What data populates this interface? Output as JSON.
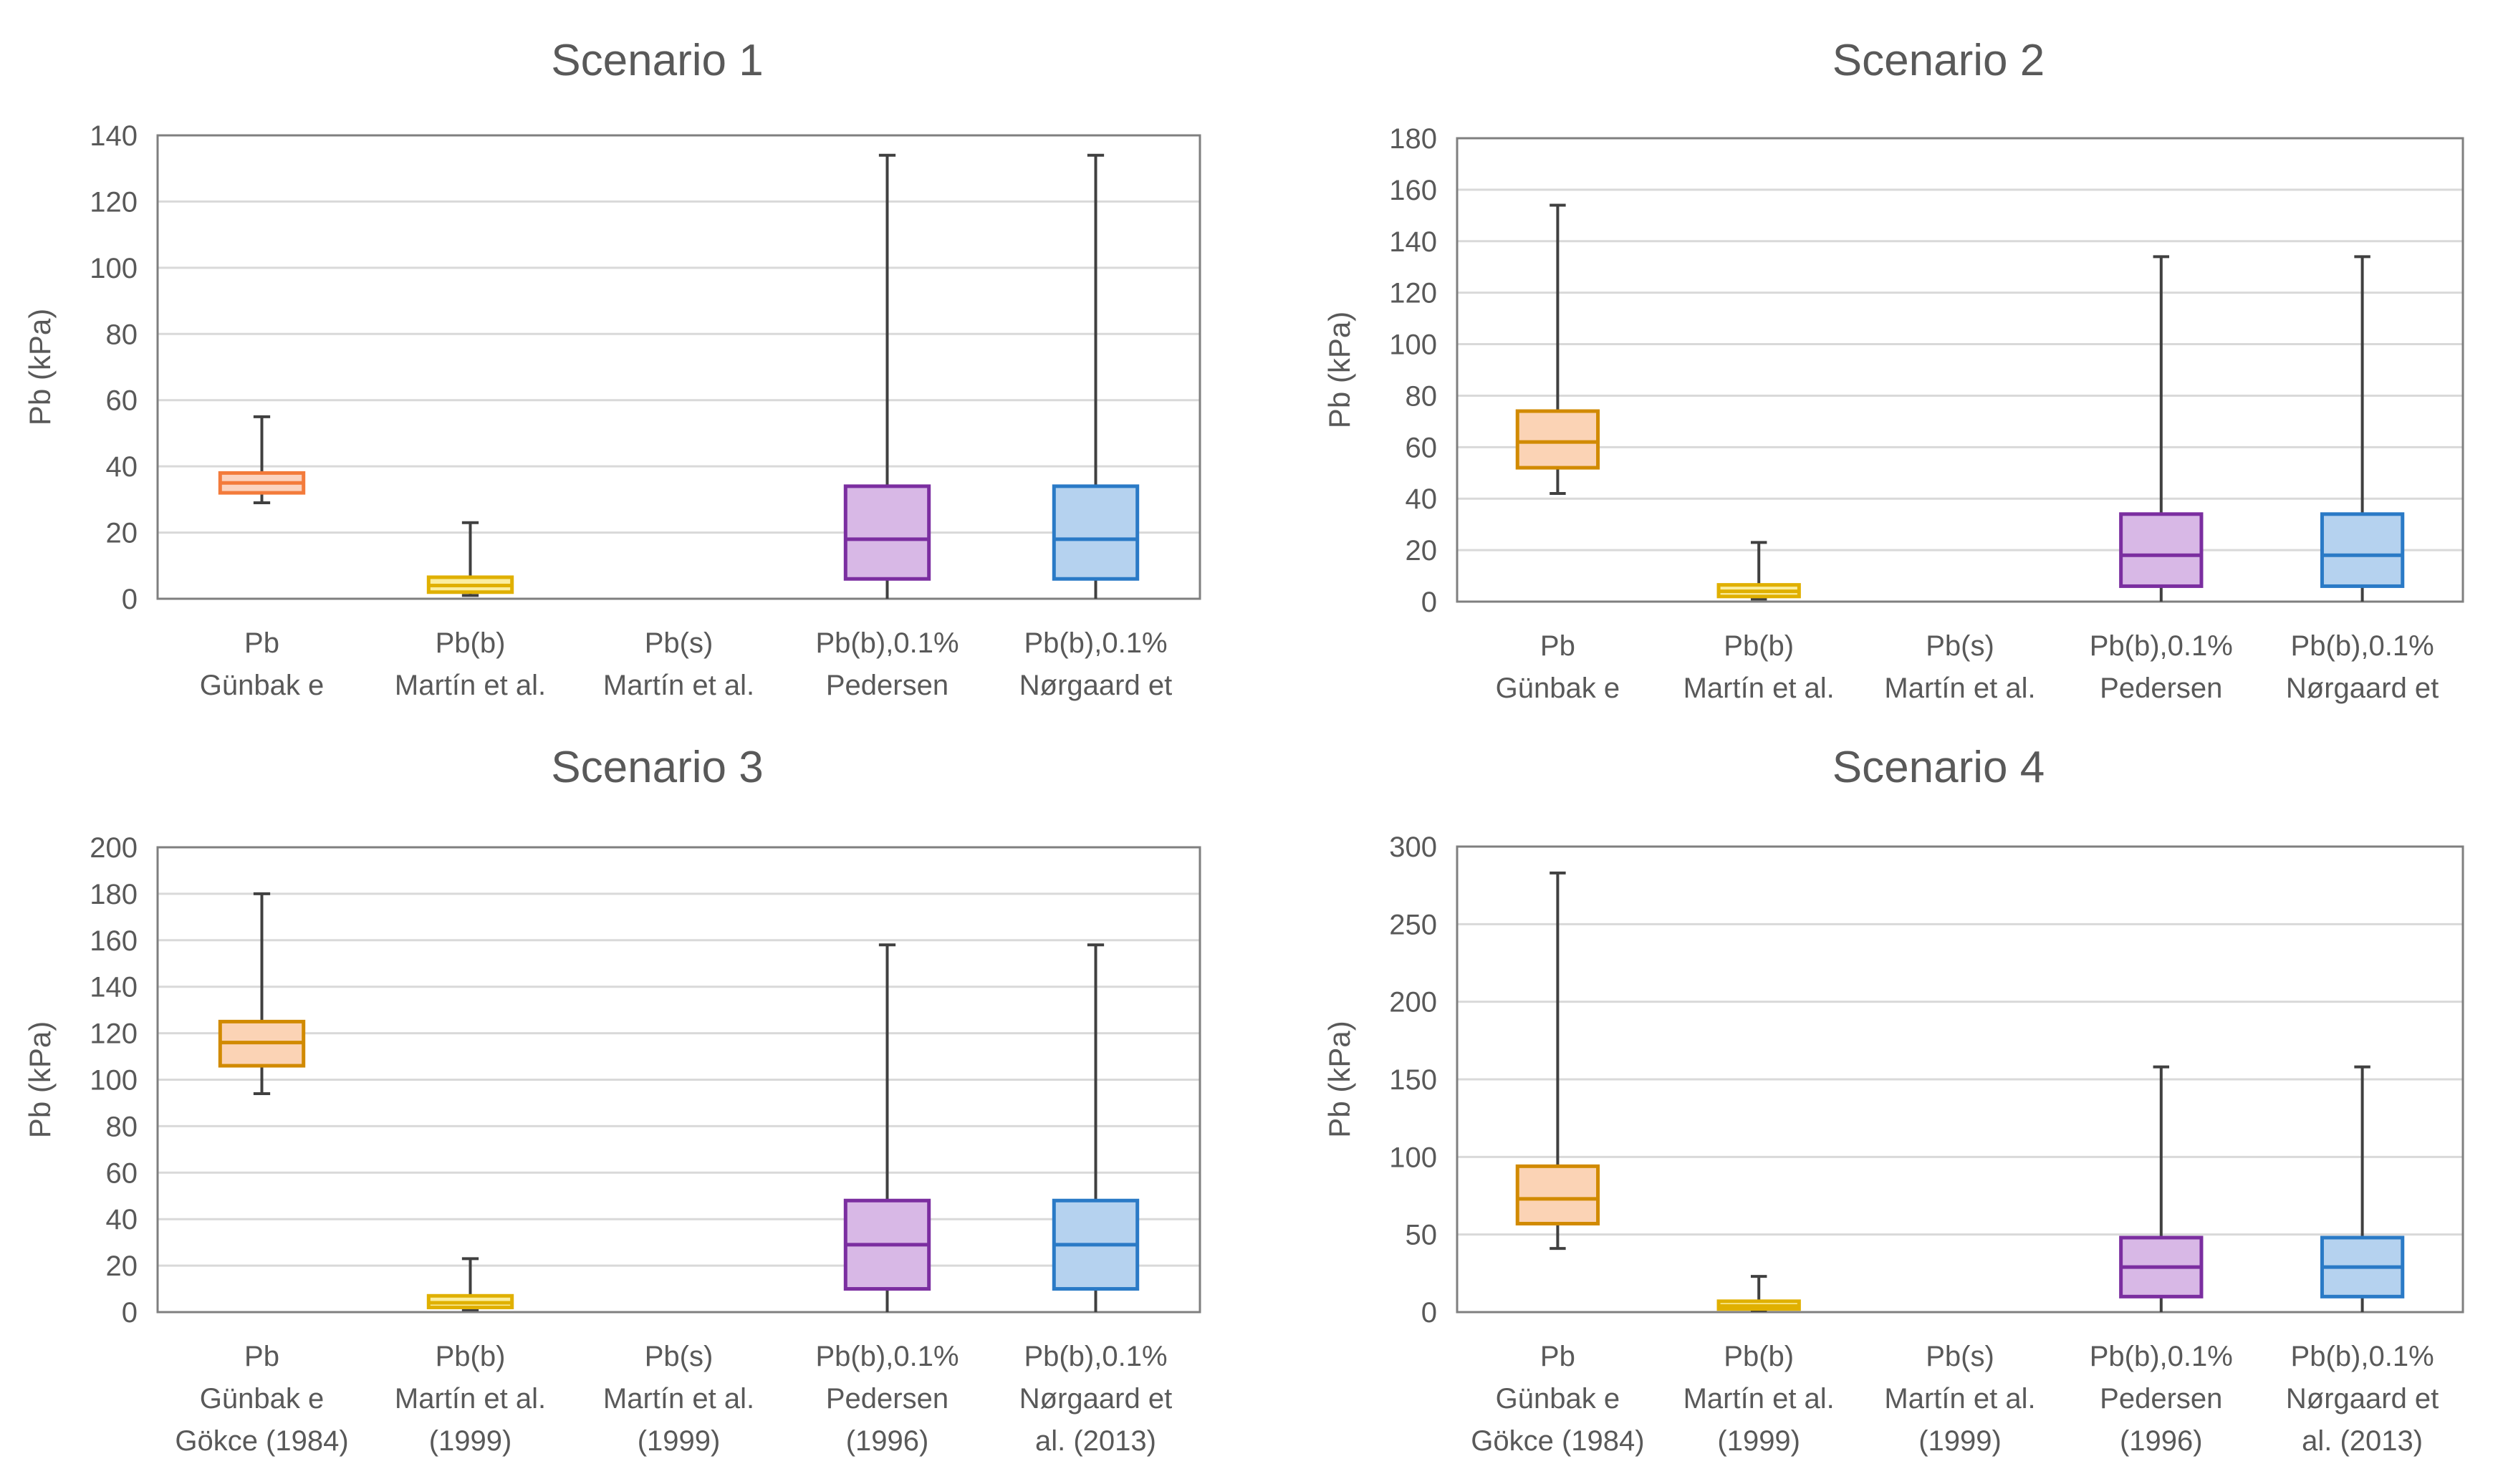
{
  "style": {
    "grid_color": "#d9d9d9",
    "frame_color": "#7f7f7f",
    "whisker_color": "#404040",
    "text_color": "#595959"
  },
  "chart_data": [
    {
      "type": "boxplot",
      "title": "Scenario 1",
      "ylabel": "Pb (kPa)",
      "ylim": [
        0,
        140
      ],
      "yticks": [
        0,
        20,
        40,
        60,
        80,
        100,
        120,
        140
      ],
      "categories": [
        [
          "Pb",
          "Günbak e"
        ],
        [
          "Pb(b)",
          "Martín et al."
        ],
        [
          "Pb(s)",
          "Martín et al."
        ],
        [
          "Pb(b),0.1%",
          "Pedersen"
        ],
        [
          "Pb(b),0.1%",
          "Nørgaard et"
        ]
      ],
      "boxes": [
        {
          "min": 29,
          "q1": 32,
          "median": 35,
          "q3": 38,
          "max": 55,
          "stroke": "#f37b3b",
          "fill": "#fbd3bf"
        },
        {
          "min": 1,
          "q1": 2,
          "median": 4,
          "q3": 6.5,
          "max": 23,
          "stroke": "#e0b000",
          "fill": "#fbeea0"
        },
        null,
        {
          "min": 0,
          "q1": 6,
          "median": 18,
          "q3": 34,
          "max": 134,
          "stroke": "#7b2ea0",
          "fill": "#d8b8e6"
        },
        {
          "min": 0,
          "q1": 6,
          "median": 18,
          "q3": 34,
          "max": 134,
          "stroke": "#2a7ac6",
          "fill": "#b5d2ef"
        }
      ]
    },
    {
      "type": "boxplot",
      "title": "Scenario 2",
      "ylabel": "Pb (kPa)",
      "ylim": [
        0,
        180
      ],
      "yticks": [
        0,
        20,
        40,
        60,
        80,
        100,
        120,
        140,
        160,
        180
      ],
      "categories": [
        [
          "Pb",
          "Günbak e"
        ],
        [
          "Pb(b)",
          "Martín et al."
        ],
        [
          "Pb(s)",
          "Martín et al."
        ],
        [
          "Pb(b),0.1%",
          "Pedersen"
        ],
        [
          "Pb(b),0.1%",
          "Nørgaard et"
        ]
      ],
      "boxes": [
        {
          "min": 42,
          "q1": 52,
          "median": 62,
          "q3": 74,
          "max": 154,
          "stroke": "#d18a00",
          "fill": "#fbd3b5"
        },
        {
          "min": 1,
          "q1": 2,
          "median": 4,
          "q3": 6.5,
          "max": 23,
          "stroke": "#e0b000",
          "fill": "#fbeea0"
        },
        null,
        {
          "min": 0,
          "q1": 6,
          "median": 18,
          "q3": 34,
          "max": 134,
          "stroke": "#7b2ea0",
          "fill": "#d8b8e6"
        },
        {
          "min": 0,
          "q1": 6,
          "median": 18,
          "q3": 34,
          "max": 134,
          "stroke": "#2a7ac6",
          "fill": "#b5d2ef"
        }
      ]
    },
    {
      "type": "boxplot",
      "title": "Scenario 3",
      "ylabel": "Pb (kPa)",
      "ylim": [
        0,
        200
      ],
      "yticks": [
        0,
        20,
        40,
        60,
        80,
        100,
        120,
        140,
        160,
        180,
        200
      ],
      "categories": [
        [
          "Pb",
          "Günbak e",
          "Gökce (1984)"
        ],
        [
          "Pb(b)",
          "Martín et al.",
          "(1999)"
        ],
        [
          "Pb(s)",
          "Martín et al.",
          "(1999)"
        ],
        [
          "Pb(b),0.1%",
          "Pedersen",
          "(1996)"
        ],
        [
          "Pb(b),0.1%",
          "Nørgaard et",
          "al. (2013)"
        ]
      ],
      "boxes": [
        {
          "min": 94,
          "q1": 106,
          "median": 116,
          "q3": 125,
          "max": 180,
          "stroke": "#d18a00",
          "fill": "#fbd3b5"
        },
        {
          "min": 1,
          "q1": 2,
          "median": 4,
          "q3": 7,
          "max": 23,
          "stroke": "#e0b000",
          "fill": "#fbeea0"
        },
        null,
        {
          "min": 0,
          "q1": 10,
          "median": 29,
          "q3": 48,
          "max": 158,
          "stroke": "#7b2ea0",
          "fill": "#d8b8e6"
        },
        {
          "min": 0,
          "q1": 10,
          "median": 29,
          "q3": 48,
          "max": 158,
          "stroke": "#2a7ac6",
          "fill": "#b5d2ef"
        }
      ]
    },
    {
      "type": "boxplot",
      "title": "Scenario 4",
      "ylabel": "Pb (kPa)",
      "ylim": [
        0,
        300
      ],
      "yticks": [
        0,
        50,
        100,
        150,
        200,
        250,
        300
      ],
      "categories": [
        [
          "Pb",
          "Günbak e",
          "Gökce (1984)"
        ],
        [
          "Pb(b)",
          "Martín et al.",
          "(1999)"
        ],
        [
          "Pb(s)",
          "Martín et al.",
          "(1999)"
        ],
        [
          "Pb(b),0.1%",
          "Pedersen",
          "(1996)"
        ],
        [
          "Pb(b),0.1%",
          "Nørgaard et",
          "al. (2013)"
        ]
      ],
      "boxes": [
        {
          "min": 41,
          "q1": 57,
          "median": 73,
          "q3": 94,
          "max": 283,
          "stroke": "#d18a00",
          "fill": "#fbd3b5"
        },
        {
          "min": 1,
          "q1": 2,
          "median": 4,
          "q3": 7,
          "max": 23,
          "stroke": "#e0b000",
          "fill": "#fbeea0"
        },
        null,
        {
          "min": 0,
          "q1": 10,
          "median": 29,
          "q3": 48,
          "max": 158,
          "stroke": "#7b2ea0",
          "fill": "#d8b8e6"
        },
        {
          "min": 0,
          "q1": 10,
          "median": 29,
          "q3": 48,
          "max": 158,
          "stroke": "#2a7ac6",
          "fill": "#b5d2ef"
        }
      ]
    }
  ]
}
